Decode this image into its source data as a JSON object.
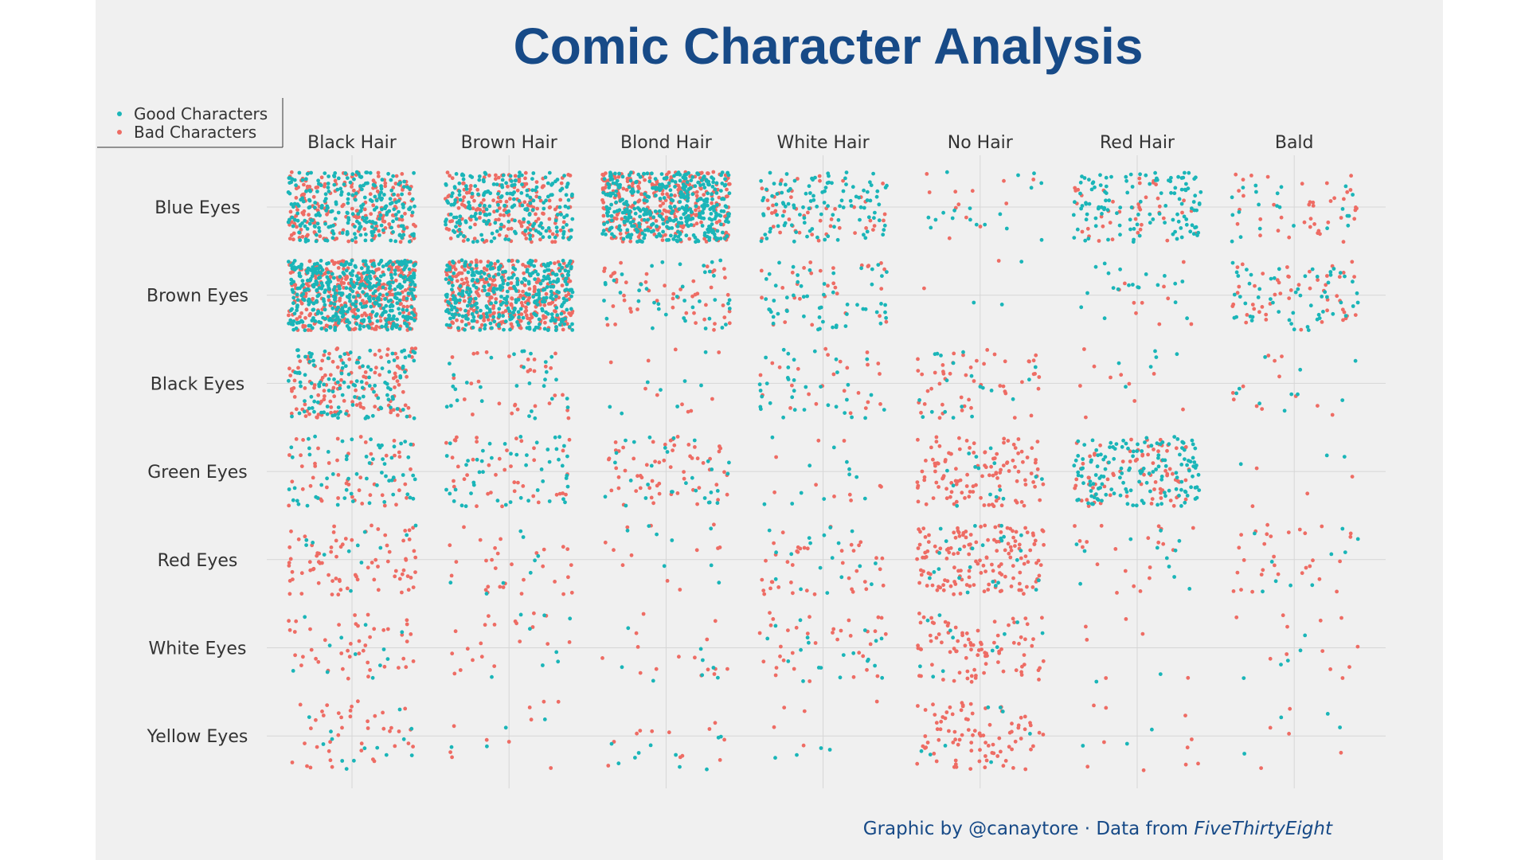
{
  "chart_data": {
    "type": "scatter",
    "title": "Comic Character Analysis",
    "xlabel": "",
    "ylabel": "",
    "x_categories": [
      "Black Hair",
      "Brown Hair",
      "Blond Hair",
      "White Hair",
      "No Hair",
      "Red Hair",
      "Bald"
    ],
    "y_categories": [
      "Blue Eyes",
      "Brown Eyes",
      "Black Eyes",
      "Green Eyes",
      "Red Eyes",
      "White Eyes",
      "Yellow Eyes"
    ],
    "jittered": true,
    "grid": true,
    "legend_position": "top-left",
    "series": [
      {
        "name": "Good Characters",
        "color": "#1ab5b8",
        "counts": [
          [
            250,
            220,
            400,
            110,
            18,
            120,
            22
          ],
          [
            450,
            350,
            40,
            55,
            3,
            20,
            55
          ],
          [
            120,
            30,
            8,
            35,
            20,
            6,
            10
          ],
          [
            60,
            50,
            30,
            12,
            15,
            150,
            3
          ],
          [
            12,
            8,
            8,
            18,
            25,
            12,
            10
          ],
          [
            12,
            8,
            8,
            20,
            12,
            2,
            5
          ],
          [
            14,
            4,
            10,
            4,
            8,
            3,
            4
          ]
        ]
      },
      {
        "name": "Bad Characters",
        "color": "#ee6c64",
        "counts": [
          [
            200,
            180,
            300,
            50,
            12,
            40,
            40
          ],
          [
            350,
            330,
            50,
            30,
            2,
            10,
            50
          ],
          [
            130,
            30,
            10,
            25,
            50,
            10,
            12
          ],
          [
            50,
            40,
            60,
            10,
            120,
            80,
            4
          ],
          [
            80,
            30,
            12,
            40,
            150,
            20,
            30
          ],
          [
            45,
            20,
            15,
            35,
            90,
            6,
            12
          ],
          [
            40,
            10,
            12,
            5,
            90,
            10,
            5
          ]
        ]
      }
    ]
  },
  "credit": {
    "prefix": "Graphic by @canaytore ·   Data from ",
    "source": "FiveThirtyEight"
  }
}
